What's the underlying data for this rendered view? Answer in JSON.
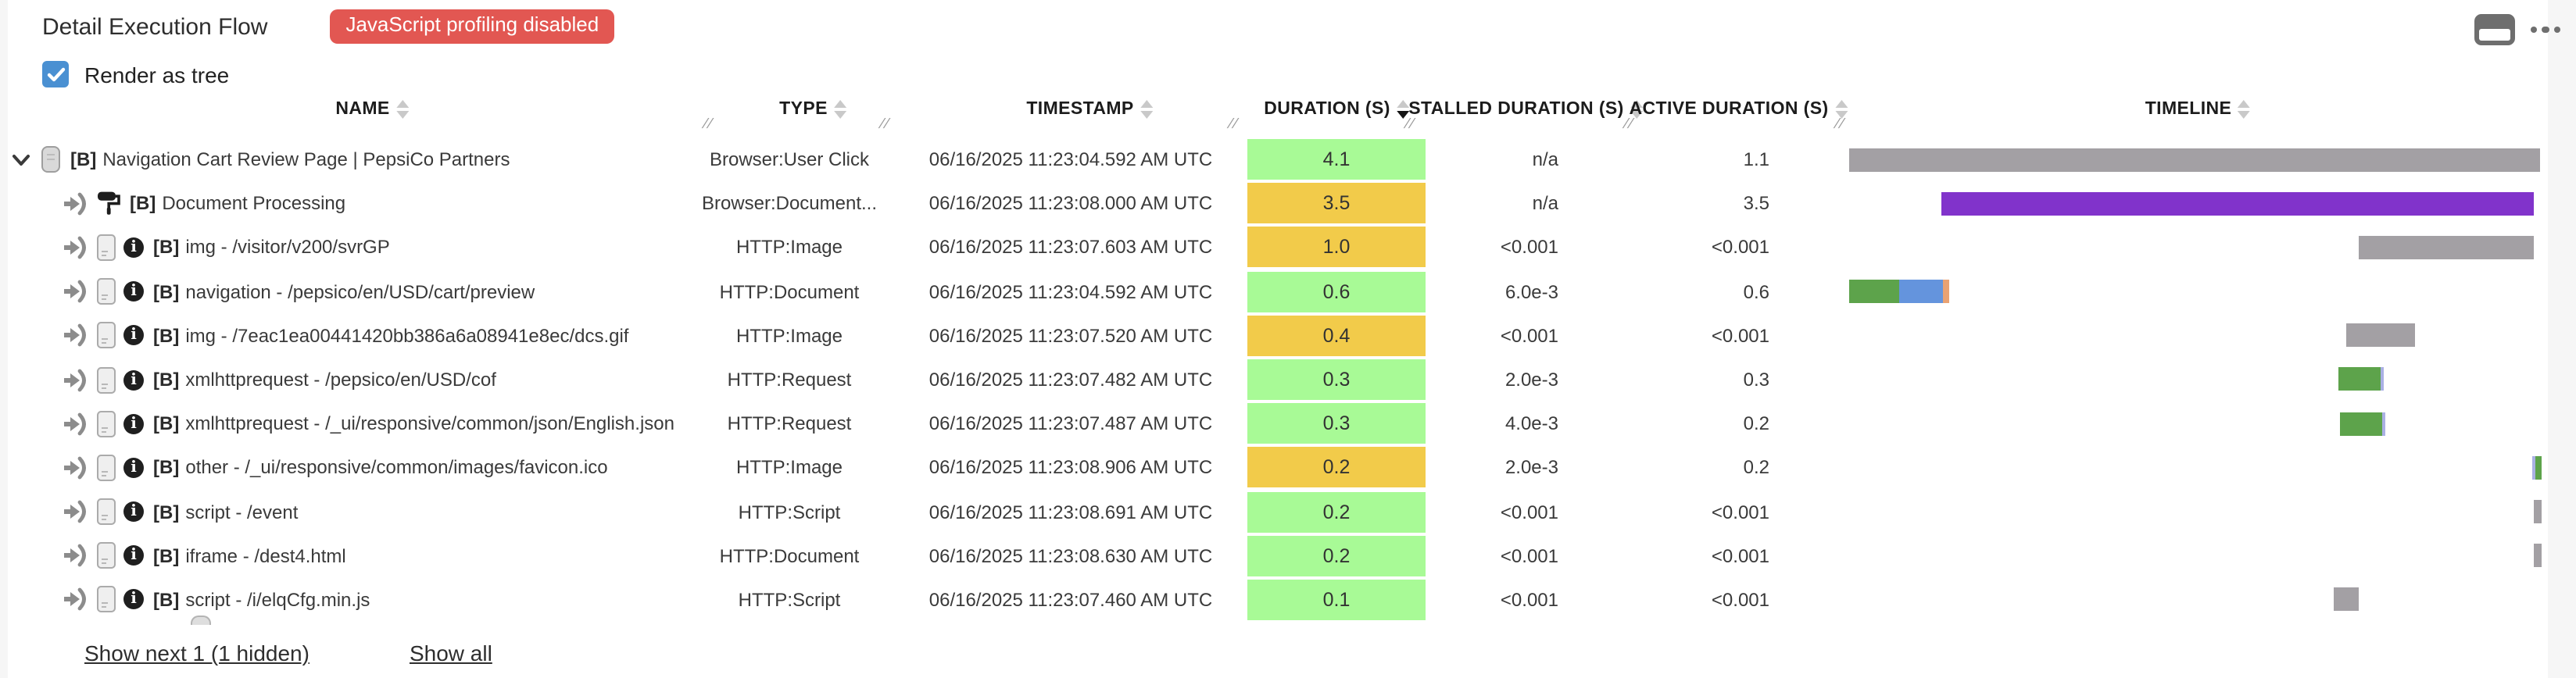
{
  "header": {
    "title": "Detail Execution Flow",
    "badge": "JavaScript profiling disabled",
    "badge_color": "#e25752"
  },
  "controls": {
    "render_as_tree": {
      "label": "Render as tree",
      "checked": true,
      "checkbox_color": "#4a90d2"
    }
  },
  "table": {
    "columns": [
      {
        "label": "NAME",
        "sort": "none"
      },
      {
        "label": "TYPE",
        "sort": "none"
      },
      {
        "label": "TIMESTAMP",
        "sort": "none"
      },
      {
        "label": "DURATION (S)",
        "sort": "desc"
      },
      {
        "label": "STALLED DURATION (S)",
        "sort": "none"
      },
      {
        "label": "ACTIVE DURATION (S)",
        "sort": "none"
      },
      {
        "label": "TIMELINE",
        "sort": "none"
      }
    ],
    "rows": [
      {
        "indent": 0,
        "expander": true,
        "icons": [
          "scroll-icon"
        ],
        "name_prefix": "[B]",
        "name": "Navigation Cart Review Page | PepsiCo Partners",
        "type": "Browser:User Click",
        "timestamp": "06/16/2025 11:23:04.592 AM UTC",
        "duration": "4.1",
        "duration_color": "green",
        "stalled": "n/a",
        "active": "1.1",
        "timeline": [
          {
            "left": 0.7,
            "width": 98.8,
            "color": "gray"
          }
        ]
      },
      {
        "indent": 1,
        "expander": false,
        "icons": [
          "enter-icon",
          "paint-roller-icon"
        ],
        "name_prefix": "[B]",
        "name": "Document Processing",
        "type": "Browser:Document...",
        "timestamp": "06/16/2025 11:23:08.000 AM UTC",
        "duration": "3.5",
        "duration_color": "yellow",
        "stalled": "n/a",
        "active": "3.5",
        "timeline": [
          {
            "left": 13.9,
            "width": 84.8,
            "color": "purple"
          }
        ]
      },
      {
        "indent": 1,
        "expander": false,
        "icons": [
          "enter-icon",
          "server-icon",
          "info-icon"
        ],
        "name_prefix": "[B]",
        "name": "img - /visitor/v200/svrGP",
        "type": "HTTP:Image",
        "timestamp": "06/16/2025 11:23:07.603 AM UTC",
        "duration": "1.0",
        "duration_color": "yellow",
        "stalled": "<0.001",
        "active": "<0.001",
        "timeline": [
          {
            "left": 73.6,
            "width": 25.1,
            "color": "gray"
          }
        ]
      },
      {
        "indent": 1,
        "expander": false,
        "icons": [
          "enter-icon",
          "server-icon",
          "info-icon"
        ],
        "name_prefix": "[B]",
        "name": "navigation - /pepsico/en/USD/cart/preview",
        "type": "HTTP:Document",
        "timestamp": "06/16/2025 11:23:04.592 AM UTC",
        "duration": "0.6",
        "duration_color": "green",
        "stalled": "6.0e-3",
        "active": "0.6",
        "timeline": [
          {
            "left": 0.7,
            "width": 7.2,
            "color": "green"
          },
          {
            "left": 7.9,
            "width": 6.3,
            "color": "blue"
          },
          {
            "left": 14.2,
            "width": 0.7,
            "color": "orange"
          }
        ]
      },
      {
        "indent": 1,
        "expander": false,
        "icons": [
          "enter-icon",
          "server-icon",
          "info-icon"
        ],
        "name_prefix": "[B]",
        "name": "img - /7eac1ea00441420bb386a6a08941e8ec/dcs.gif",
        "type": "HTTP:Image",
        "timestamp": "06/16/2025 11:23:07.520 AM UTC",
        "duration": "0.4",
        "duration_color": "yellow",
        "stalled": "<0.001",
        "active": "<0.001",
        "timeline": [
          {
            "left": 71.8,
            "width": 9.9,
            "color": "gray"
          }
        ]
      },
      {
        "indent": 1,
        "expander": false,
        "icons": [
          "enter-icon",
          "server-icon",
          "info-icon"
        ],
        "name_prefix": "[B]",
        "name": "xmlhttprequest - /pepsico/en/USD/cof",
        "type": "HTTP:Request",
        "timestamp": "06/16/2025 11:23:07.482 AM UTC",
        "duration": "0.3",
        "duration_color": "green",
        "stalled": "2.0e-3",
        "active": "0.3",
        "timeline": [
          {
            "left": 70.7,
            "width": 6.0,
            "color": "green"
          },
          {
            "left": 76.7,
            "width": 0.5,
            "color": "lavender"
          }
        ]
      },
      {
        "indent": 1,
        "expander": false,
        "icons": [
          "enter-icon",
          "server-icon",
          "info-icon"
        ],
        "name_prefix": "[B]",
        "name": "xmlhttprequest - /_ui/responsive/common/json/English.json",
        "type": "HTTP:Request",
        "timestamp": "06/16/2025 11:23:07.487 AM UTC",
        "duration": "0.3",
        "duration_color": "green",
        "stalled": "4.0e-3",
        "active": "0.2",
        "timeline": [
          {
            "left": 70.9,
            "width": 6.0,
            "color": "green"
          },
          {
            "left": 76.9,
            "width": 0.5,
            "color": "lavender"
          }
        ]
      },
      {
        "indent": 1,
        "expander": false,
        "icons": [
          "enter-icon",
          "server-icon",
          "info-icon"
        ],
        "name_prefix": "[B]",
        "name": "other - /_ui/responsive/common/images/favicon.ico",
        "type": "HTTP:Image",
        "timestamp": "06/16/2025 11:23:08.906 AM UTC",
        "duration": "0.2",
        "duration_color": "yellow",
        "stalled": "2.0e-3",
        "active": "0.2",
        "timeline": [
          {
            "left": 98.4,
            "width": 0.4,
            "color": "lavender"
          },
          {
            "left": 98.8,
            "width": 1.0,
            "color": "green"
          }
        ]
      },
      {
        "indent": 1,
        "expander": false,
        "icons": [
          "enter-icon",
          "server-icon",
          "info-icon"
        ],
        "name_prefix": "[B]",
        "name": "script - /event",
        "type": "HTTP:Script",
        "timestamp": "06/16/2025 11:23:08.691 AM UTC",
        "duration": "0.2",
        "duration_color": "green",
        "stalled": "<0.001",
        "active": "<0.001",
        "timeline": [
          {
            "left": 98.7,
            "width": 1.0,
            "color": "gray"
          }
        ]
      },
      {
        "indent": 1,
        "expander": false,
        "icons": [
          "enter-icon",
          "server-icon",
          "info-icon"
        ],
        "name_prefix": "[B]",
        "name": "iframe - /dest4.html",
        "type": "HTTP:Document",
        "timestamp": "06/16/2025 11:23:08.630 AM UTC",
        "duration": "0.2",
        "duration_color": "green",
        "stalled": "<0.001",
        "active": "<0.001",
        "timeline": [
          {
            "left": 98.7,
            "width": 1.0,
            "color": "gray"
          }
        ]
      },
      {
        "indent": 1,
        "expander": false,
        "icons": [
          "enter-icon",
          "server-icon",
          "info-icon"
        ],
        "name_prefix": "[B]",
        "name": "script - /i/elqCfg.min.js",
        "type": "HTTP:Script",
        "timestamp": "06/16/2025 11:23:07.460 AM UTC",
        "duration": "0.1",
        "duration_color": "green",
        "stalled": "<0.001",
        "active": "<0.001",
        "timeline": [
          {
            "left": 70.0,
            "width": 3.6,
            "color": "gray"
          }
        ]
      }
    ]
  },
  "footer": {
    "show_next_label": "Show next 1 (1 hidden)",
    "show_all_label": "Show all"
  },
  "colors": {
    "duration": {
      "green": "#a8fa96",
      "yellow": "#f2cb4a"
    },
    "timeline": {
      "gray": "#a3a0a4",
      "purple": "#8133cb",
      "green": "#5da34b",
      "blue": "#6494dd",
      "orange": "#e9a273",
      "lavender": "#aab0e4"
    }
  }
}
